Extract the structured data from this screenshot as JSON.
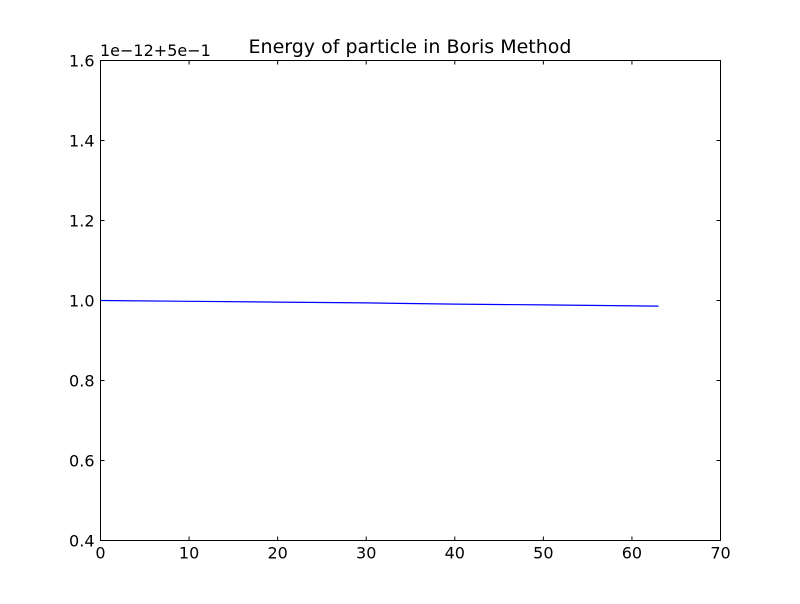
{
  "chart_data": {
    "type": "line",
    "title": "Energy of particle in Boris Method",
    "xlabel": "",
    "ylabel": "",
    "offset_text": "1e−12+5e−1",
    "xlim": [
      0,
      70
    ],
    "ylim": [
      0.4,
      1.6
    ],
    "x_ticks": [
      0,
      10,
      20,
      30,
      40,
      50,
      60,
      70
    ],
    "x_tick_labels": [
      "0",
      "10",
      "20",
      "30",
      "40",
      "50",
      "60",
      "70"
    ],
    "y_ticks": [
      0.4,
      0.6,
      0.8,
      1.0,
      1.2,
      1.4,
      1.6
    ],
    "y_tick_labels": [
      "0.4",
      "0.6",
      "0.8",
      "1.0",
      "1.2",
      "1.4",
      "1.6"
    ],
    "grid": false,
    "series": [
      {
        "color": "#0000ff",
        "x": [
          0,
          10,
          20,
          30,
          40,
          50,
          63
        ],
        "y": [
          1.0,
          0.998,
          0.996,
          0.994,
          0.991,
          0.989,
          0.986
        ]
      }
    ]
  }
}
